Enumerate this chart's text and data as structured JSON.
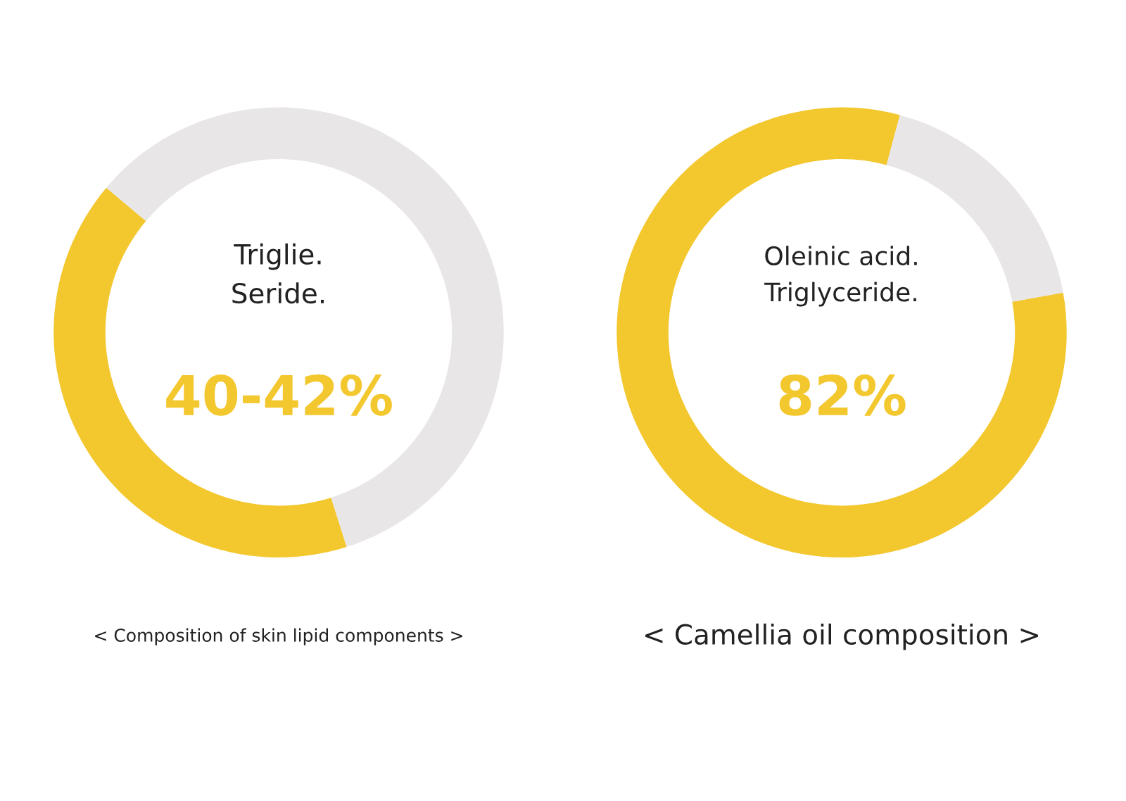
{
  "chart_data": [
    {
      "type": "donut",
      "categories": [
        null,
        null
      ],
      "values": [
        41,
        59
      ],
      "colors": [
        "#f3c72e",
        "#e8e6e7"
      ],
      "annotations": [
        "Triglie.\nSeride.",
        "40-42%",
        "< Composition of skin lipid components >"
      ]
    },
    {
      "type": "donut",
      "categories": [
        null,
        null
      ],
      "values": [
        82,
        18
      ],
      "colors": [
        "#f3c72e",
        "#e8e6e7"
      ],
      "annotations": [
        "Oleinic acid.\nTriglyceride.",
        "82%",
        "< Camellia oil composition >"
      ]
    }
  ]
}
